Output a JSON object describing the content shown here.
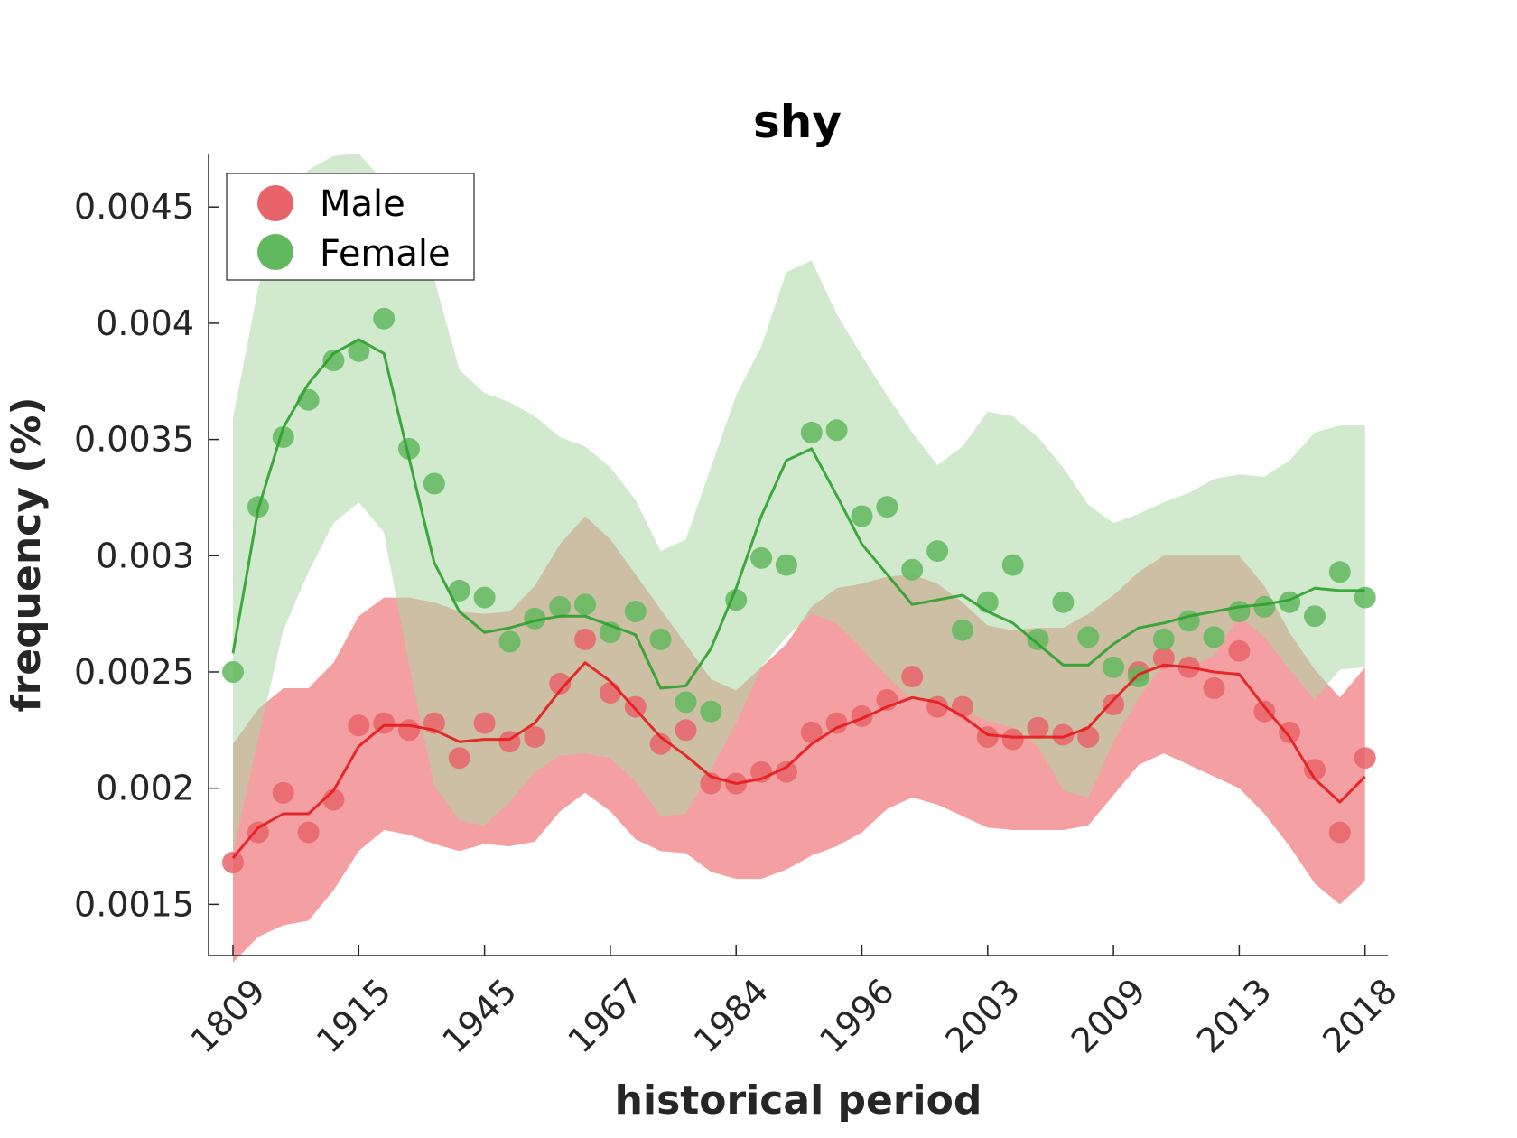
{
  "chart_data": {
    "type": "line",
    "title": "shy",
    "xlabel": "historical period",
    "ylabel": "frequency (%)",
    "ylim": [
      0.00128,
      0.00473
    ],
    "yticks": [
      "0.0015",
      "0.002",
      "0.0025",
      "0.003",
      "0.0035",
      "0.004",
      "0.0045"
    ],
    "ytick_values": [
      0.0015,
      0.002,
      0.0025,
      0.003,
      0.0035,
      0.004,
      0.0045
    ],
    "xtick_labels": [
      "1809",
      "1915",
      "1945",
      "1967",
      "1984",
      "1996",
      "2003",
      "2009",
      "2013",
      "2018"
    ],
    "xtick_positions": [
      0,
      5,
      10,
      15,
      20,
      25,
      30,
      35,
      40,
      45
    ],
    "x": [
      0,
      1,
      2,
      3,
      4,
      5,
      6,
      7,
      8,
      9,
      10,
      11,
      12,
      13,
      14,
      15,
      16,
      17,
      18,
      19,
      20,
      21,
      22,
      23,
      24,
      25,
      26,
      27,
      28,
      29,
      30,
      31,
      32,
      33,
      34,
      35,
      36,
      37,
      38,
      39,
      40,
      41,
      42,
      43,
      44,
      45
    ],
    "grid": false,
    "legend_position": "top-left",
    "series": [
      {
        "name": "Male",
        "color": "#e41a1c",
        "marker_color": "#e8646a",
        "band_color": "#f4a0a2",
        "points": [
          0.00168,
          0.00181,
          0.00198,
          0.00181,
          0.00195,
          0.00227,
          0.00228,
          0.00225,
          0.00228,
          0.00213,
          0.00228,
          0.0022,
          0.00222,
          0.00245,
          0.00264,
          0.00241,
          0.00235,
          0.00219,
          0.00225,
          0.00202,
          0.00202,
          0.00207,
          0.00207,
          0.00224,
          0.00228,
          0.00231,
          0.00238,
          0.00248,
          0.00235,
          0.00235,
          0.00222,
          0.00221,
          0.00226,
          0.00223,
          0.00222,
          0.00236,
          0.0025,
          0.00256,
          0.00252,
          0.00243,
          0.00259,
          0.00233,
          0.00224,
          0.00208,
          0.00181,
          0.00213
        ],
        "trend": [
          0.0017,
          0.00183,
          0.00189,
          0.00189,
          0.00199,
          0.00218,
          0.00227,
          0.00227,
          0.00225,
          0.0022,
          0.00221,
          0.00221,
          0.00228,
          0.00242,
          0.00254,
          0.00246,
          0.00234,
          0.00222,
          0.00214,
          0.00205,
          0.00202,
          0.00204,
          0.00209,
          0.00219,
          0.00226,
          0.0023,
          0.00235,
          0.00239,
          0.00237,
          0.00231,
          0.00223,
          0.00222,
          0.00222,
          0.00222,
          0.00226,
          0.00238,
          0.00249,
          0.00253,
          0.00252,
          0.0025,
          0.00249,
          0.00235,
          0.00222,
          0.00204,
          0.00194,
          0.00205
        ],
        "band_upper": [
          0.00219,
          0.00234,
          0.00243,
          0.00243,
          0.00254,
          0.00274,
          0.00282,
          0.00282,
          0.0028,
          0.00276,
          0.00275,
          0.00276,
          0.00287,
          0.00305,
          0.00317,
          0.00307,
          0.00292,
          0.00277,
          0.00262,
          0.00247,
          0.00242,
          0.00252,
          0.00262,
          0.00278,
          0.00286,
          0.00288,
          0.00291,
          0.00292,
          0.00288,
          0.0028,
          0.0027,
          0.00268,
          0.00269,
          0.00269,
          0.00275,
          0.00283,
          0.00293,
          0.003,
          0.003,
          0.003,
          0.003,
          0.00287,
          0.00267,
          0.00251,
          0.00239,
          0.00252
        ],
        "band_lower": [
          0.00125,
          0.00136,
          0.00141,
          0.00143,
          0.00156,
          0.00173,
          0.00182,
          0.0018,
          0.00176,
          0.00173,
          0.00176,
          0.00175,
          0.00177,
          0.0019,
          0.00198,
          0.0019,
          0.00178,
          0.00173,
          0.00172,
          0.00164,
          0.00161,
          0.00161,
          0.00165,
          0.00171,
          0.00175,
          0.00181,
          0.00191,
          0.00196,
          0.00193,
          0.00188,
          0.00183,
          0.00182,
          0.00182,
          0.00182,
          0.00184,
          0.00197,
          0.0021,
          0.00215,
          0.0021,
          0.00205,
          0.002,
          0.00189,
          0.00175,
          0.00159,
          0.0015,
          0.0016
        ]
      },
      {
        "name": "Female",
        "color": "#2ca02c",
        "marker_color": "#62b85e",
        "band_color": "#acd8a6",
        "points": [
          0.0025,
          0.00321,
          0.00351,
          0.00367,
          0.00384,
          0.00388,
          0.00402,
          0.00346,
          0.00331,
          0.00285,
          0.00282,
          0.00263,
          0.00273,
          0.00278,
          0.00279,
          0.00267,
          0.00276,
          0.00264,
          0.00237,
          0.00233,
          0.00281,
          0.00299,
          0.00296,
          0.00353,
          0.00354,
          0.00317,
          0.00321,
          0.00294,
          0.00302,
          0.00268,
          0.0028,
          0.00296,
          0.00264,
          0.0028,
          0.00265,
          0.00252,
          0.00248,
          0.00264,
          0.00272,
          0.00265,
          0.00276,
          0.00278,
          0.0028,
          0.00274,
          0.00293,
          0.00282
        ],
        "trend": [
          0.00258,
          0.0032,
          0.00355,
          0.00374,
          0.00387,
          0.00393,
          0.00387,
          0.00342,
          0.00297,
          0.00276,
          0.00267,
          0.00269,
          0.00272,
          0.00274,
          0.00274,
          0.0027,
          0.00266,
          0.00243,
          0.00244,
          0.0026,
          0.00286,
          0.00317,
          0.00341,
          0.00346,
          0.00326,
          0.00305,
          0.00292,
          0.00279,
          0.00281,
          0.00283,
          0.00276,
          0.00271,
          0.00262,
          0.00253,
          0.00253,
          0.00262,
          0.00269,
          0.00271,
          0.00274,
          0.00276,
          0.00278,
          0.00279,
          0.00281,
          0.00286,
          0.00285,
          0.00285
        ],
        "band_upper": [
          0.00359,
          0.00415,
          0.00455,
          0.00466,
          0.00472,
          0.00473,
          0.00461,
          0.0045,
          0.00419,
          0.0038,
          0.0037,
          0.00366,
          0.0036,
          0.00351,
          0.00347,
          0.00338,
          0.00324,
          0.00302,
          0.00307,
          0.00338,
          0.00369,
          0.0039,
          0.00422,
          0.00427,
          0.00404,
          0.00386,
          0.00369,
          0.00353,
          0.00339,
          0.00347,
          0.00362,
          0.0036,
          0.00351,
          0.00338,
          0.00322,
          0.00314,
          0.00318,
          0.00323,
          0.00327,
          0.00333,
          0.00335,
          0.00334,
          0.00341,
          0.00353,
          0.00356,
          0.00356
        ],
        "band_lower": [
          0.00172,
          0.00221,
          0.00268,
          0.00293,
          0.00314,
          0.00323,
          0.0031,
          0.00253,
          0.00201,
          0.00186,
          0.00184,
          0.00194,
          0.00207,
          0.00214,
          0.00215,
          0.00213,
          0.00203,
          0.00188,
          0.00189,
          0.00208,
          0.00228,
          0.00252,
          0.00265,
          0.00275,
          0.00271,
          0.0026,
          0.00248,
          0.00238,
          0.00237,
          0.00233,
          0.00229,
          0.00226,
          0.00218,
          0.00199,
          0.00196,
          0.0022,
          0.00239,
          0.00253,
          0.00252,
          0.00257,
          0.00274,
          0.00265,
          0.00251,
          0.00238,
          0.00251,
          0.00252
        ]
      }
    ]
  }
}
